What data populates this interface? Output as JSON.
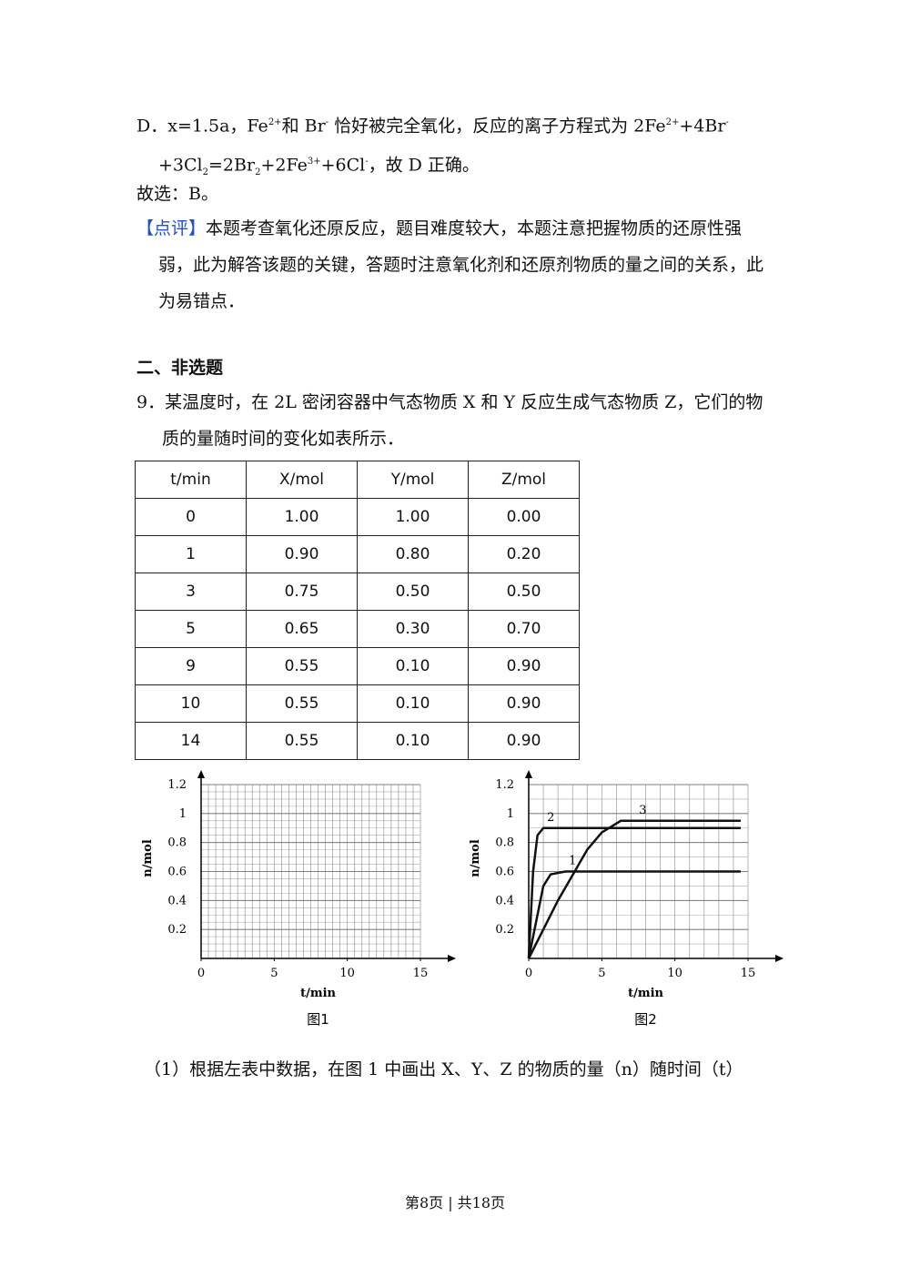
{
  "paragraph_d": [
    "D．x=1.5a，Fe",
    "2+",
    "和 Br",
    "-",
    " 恰好被完全氧化，反应的离子方程式为 2Fe",
    "2+",
    "+4Br",
    "-",
    " +3Cl",
    "2",
    "=2Br",
    "2",
    "+2Fe",
    "3+",
    "+6Cl",
    "-",
    "，故 D 正确。"
  ],
  "answer": "故选：B。",
  "comment": {
    "tag": "【点评】",
    "text": "本题考查氧化还原反应，题目难度较大，本题注意把握物质的还原性强弱，此为解答该题的关键，答题时注意氧化剂和还原剂物质的量之间的关系，此为易错点．"
  },
  "section": "二、非选题",
  "question": "9．某温度时，在 2L 密闭容器中气态物质 X 和 Y 反应生成气态物质 Z，它们的物质的量随时间的变化如表所示．",
  "table": {
    "header": [
      "t/min",
      "X/mol",
      "Y/mol",
      "Z/mol"
    ],
    "rows": [
      [
        "0",
        "1.00",
        "1.00",
        "0.00"
      ],
      [
        "1",
        "0.90",
        "0.80",
        "0.20"
      ],
      [
        "3",
        "0.75",
        "0.50",
        "0.50"
      ],
      [
        "5",
        "0.65",
        "0.30",
        "0.70"
      ],
      [
        "9",
        "0.55",
        "0.10",
        "0.90"
      ],
      [
        "10",
        "0.55",
        "0.10",
        "0.90"
      ],
      [
        "14",
        "0.55",
        "0.10",
        "0.90"
      ]
    ]
  },
  "figures": [
    {
      "caption": "图1",
      "ylabel": "n/mol",
      "xlabel": "t/min",
      "xlim": [
        0,
        15
      ],
      "ylim": [
        0,
        1.2
      ],
      "xticks": [
        0,
        5,
        10,
        15
      ],
      "yticks": [
        0.2,
        0.4,
        0.6,
        0.8,
        1,
        1.2
      ]
    },
    {
      "caption": "图2",
      "ylabel": "n/mol",
      "xlabel": "t/min",
      "xlim": [
        0,
        15
      ],
      "ylim": [
        0,
        1.2
      ],
      "xticks": [
        0,
        5,
        10,
        15
      ],
      "yticks": [
        0.2,
        0.4,
        0.6,
        0.8,
        1,
        1.2
      ],
      "series": [
        {
          "name": "1",
          "x": [
            0,
            1,
            1.5,
            2.5,
            14.5
          ],
          "values": [
            0,
            0.5,
            0.58,
            0.6,
            0.6
          ]
        },
        {
          "name": "2",
          "x": [
            0,
            0.3,
            0.6,
            1,
            14.5
          ],
          "values": [
            0,
            0.6,
            0.85,
            0.9,
            0.9
          ]
        },
        {
          "name": "3",
          "x": [
            0,
            2,
            4,
            5,
            6.3,
            14.5
          ],
          "values": [
            0,
            0.4,
            0.75,
            0.87,
            0.95,
            0.95
          ]
        }
      ]
    }
  ],
  "sub_question": "（1）根据左表中数据，在图 1 中画出 X、Y、Z 的物质的量（n）随时间（t）",
  "footer": "第8页 | 共18页"
}
